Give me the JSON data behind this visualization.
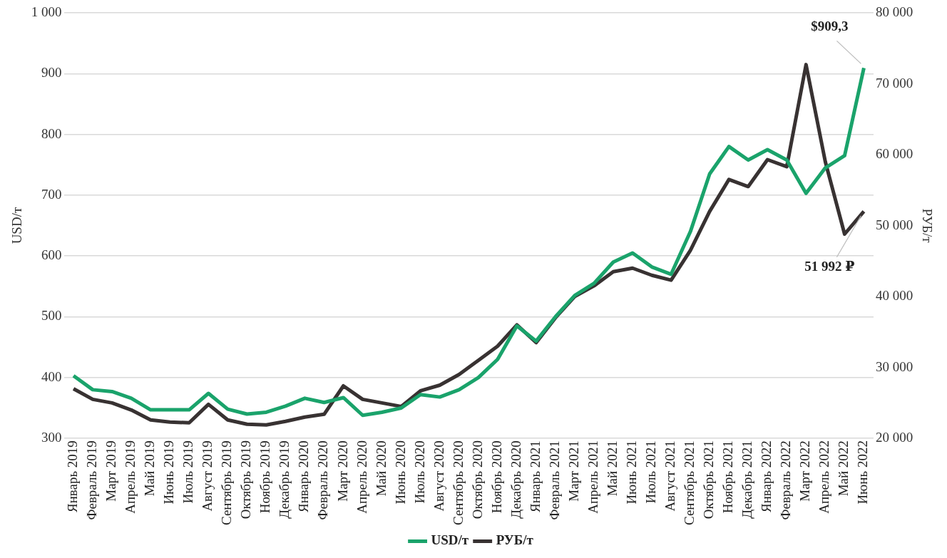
{
  "chart_data": {
    "type": "line",
    "ylabel": "USD/т",
    "y2label": "РУБ/т",
    "categories": [
      "Январь 2019",
      "Февраль 2019",
      "Март 2019",
      "Апрель 2019",
      "Май 2019",
      "Июнь 2019",
      "Июль 2019",
      "Август 2019",
      "Сентябрь 2019",
      "Октябрь 2019",
      "Ноябрь 2019",
      "Декабрь 2019",
      "Январь 2020",
      "Февраль 2020",
      "Март 2020",
      "Апрель 2020",
      "Май 2020",
      "Июнь 2020",
      "Июль 2020",
      "Август 2020",
      "Сентябрь 2020",
      "Октябрь 2020",
      "Ноябрь 2020",
      "Декабрь 2020",
      "Январь 2021",
      "Февраль 2021",
      "Март 2021",
      "Апрель 2021",
      "Май 2021",
      "Июнь 2021",
      "Июль 2021",
      "Август 2021",
      "Сентябрь 2021",
      "Октябрь 2021",
      "Ноябрь 2021",
      "Декабрь 2021",
      "Январь 2022",
      "Февраль 2022",
      "Март 2022",
      "Апрель 2022",
      "Май 2022",
      "Июнь 2022"
    ],
    "series": [
      {
        "name": "USD/т",
        "color": "#1aa36b",
        "values": [
          403,
          380,
          377,
          366,
          347,
          347,
          347,
          374,
          348,
          340,
          343,
          353,
          366,
          359,
          367,
          338,
          343,
          350,
          372,
          368,
          380,
          400,
          430,
          485,
          460,
          500,
          535,
          555,
          590,
          605,
          582,
          570,
          640,
          735,
          780,
          758,
          775,
          758,
          703,
          745,
          765,
          909.3
        ],
        "value_labels": [
          null,
          null,
          null,
          null,
          null,
          null,
          null,
          null,
          null,
          null,
          null,
          null,
          null,
          null,
          null,
          null,
          null,
          null,
          null,
          null,
          null,
          null,
          null,
          null,
          null,
          null,
          null,
          null,
          null,
          null,
          null,
          null,
          null,
          null,
          null,
          null,
          null,
          null,
          null,
          null,
          null,
          "$909,3"
        ]
      },
      {
        "name": "РУБ/т",
        "color": "#383232",
        "axis": "y2",
        "values": [
          27000,
          25500,
          25000,
          24000,
          22600,
          22300,
          22200,
          24800,
          22600,
          22000,
          21900,
          22400,
          23000,
          23400,
          27400,
          25500,
          25000,
          24500,
          26700,
          27500,
          29000,
          31000,
          33000,
          36000,
          33500,
          37000,
          40000,
          41500,
          43500,
          44000,
          43000,
          42300,
          46500,
          52000,
          56500,
          55500,
          59300,
          58300,
          72700,
          59000,
          48800,
          51992
        ],
        "value_labels": [
          null,
          null,
          null,
          null,
          null,
          null,
          null,
          null,
          null,
          null,
          null,
          null,
          null,
          null,
          null,
          null,
          null,
          null,
          null,
          null,
          null,
          null,
          null,
          null,
          null,
          null,
          null,
          null,
          null,
          null,
          null,
          null,
          null,
          null,
          null,
          null,
          null,
          null,
          null,
          null,
          null,
          "51 992 ₽"
        ]
      }
    ],
    "ylim": [
      300,
      1000
    ],
    "yticks": [
      300,
      400,
      500,
      600,
      700,
      800,
      900,
      {
        "value": 1000,
        "label": "1 000"
      }
    ],
    "y2lim": [
      20000,
      80000
    ],
    "y2ticks": [
      {
        "value": 20000,
        "label": "20 000"
      },
      {
        "value": 30000,
        "label": "30 000"
      },
      {
        "value": 40000,
        "label": "40 000"
      },
      {
        "value": 50000,
        "label": "50 000"
      },
      {
        "value": 60000,
        "label": "60 000"
      },
      {
        "value": 70000,
        "label": "70 000"
      },
      {
        "value": 80000,
        "label": "80 000"
      }
    ],
    "grid": "y",
    "legend": "bottom",
    "marker": "none",
    "line_style": "solid"
  }
}
